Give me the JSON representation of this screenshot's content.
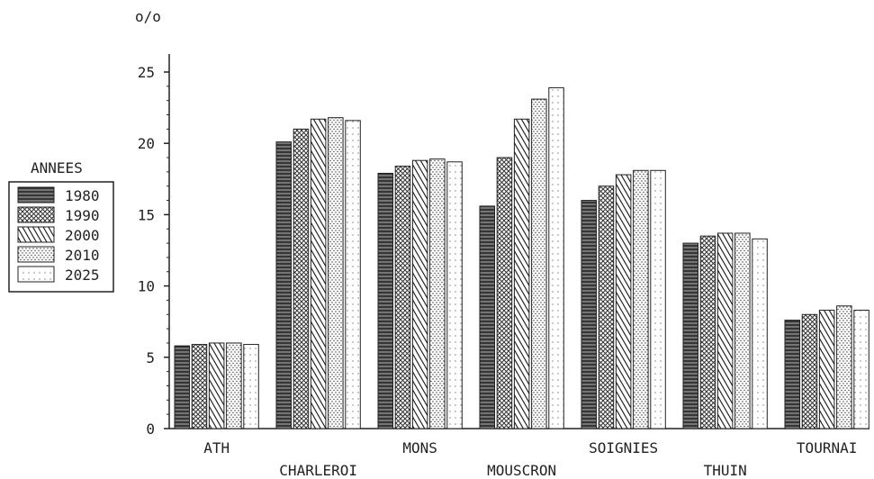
{
  "chart_data": {
    "type": "bar",
    "title": "",
    "xlabel": "",
    "ylabel": "o/o",
    "ylim": [
      0,
      25
    ],
    "yticks": [
      0,
      5,
      10,
      15,
      20,
      25
    ],
    "grid": false,
    "legend_title": "ANNEES",
    "legend_position": "left",
    "categories": [
      "ATH",
      "CHARLEROI",
      "MONS",
      "MOUSCRON",
      "SOIGNIES",
      "THUIN",
      "TOURNAI"
    ],
    "series": [
      {
        "name": "1980",
        "values": [
          5.8,
          20.1,
          17.9,
          15.6,
          16.0,
          13.0,
          7.6
        ]
      },
      {
        "name": "1990",
        "values": [
          5.9,
          21.0,
          18.4,
          19.0,
          17.0,
          13.5,
          8.0
        ]
      },
      {
        "name": "2000",
        "values": [
          6.0,
          21.7,
          18.8,
          21.7,
          17.8,
          13.7,
          8.3
        ]
      },
      {
        "name": "2010",
        "values": [
          6.0,
          21.8,
          18.9,
          23.1,
          18.1,
          13.7,
          8.6
        ]
      },
      {
        "name": "2025",
        "values": [
          5.9,
          21.6,
          18.7,
          23.9,
          18.1,
          13.3,
          8.3
        ]
      }
    ]
  }
}
